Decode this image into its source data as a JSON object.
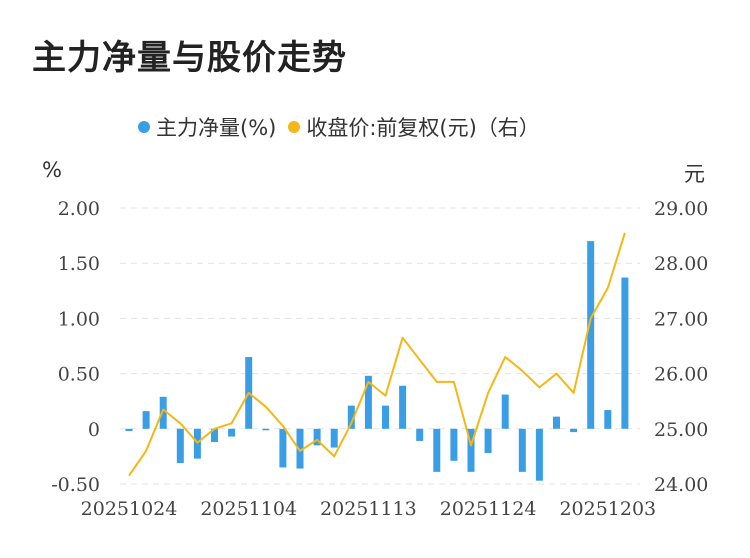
{
  "title": "主力净量与股价走势",
  "legend": {
    "bar_label": "主力净量(%)",
    "line_label": "收盘价:前复权(元)（右）"
  },
  "units": {
    "left": "%",
    "right": "元"
  },
  "colors": {
    "bar": "#3a9ee6",
    "line": "#f5b716",
    "grid": "#e3e3e3"
  },
  "chart_data": {
    "type": "bar+line",
    "x_tick_labels": [
      "20251024",
      "20251104",
      "20251113",
      "20251124",
      "20251203"
    ],
    "x_tick_indices": [
      0,
      7,
      14,
      21,
      28
    ],
    "left_axis": {
      "ticks": [
        "2.00",
        "1.50",
        "1.00",
        "0.50",
        "0",
        "-0.50"
      ],
      "min": -0.5,
      "max": 2.0
    },
    "right_axis": {
      "ticks": [
        "29.00",
        "28.00",
        "27.00",
        "26.00",
        "25.00",
        "24.00"
      ],
      "min": 24.0,
      "max": 29.0
    },
    "grid": true,
    "series": [
      {
        "name": "主力净量(%)",
        "kind": "bar",
        "values": [
          -0.02,
          0.16,
          0.29,
          -0.31,
          -0.27,
          -0.12,
          -0.07,
          0.65,
          -0.01,
          -0.35,
          -0.36,
          -0.15,
          -0.17,
          0.21,
          0.48,
          0.21,
          0.39,
          -0.11,
          -0.39,
          -0.29,
          -0.39,
          -0.22,
          0.31,
          -0.39,
          -0.47,
          0.11,
          -0.03,
          1.7,
          0.17,
          1.37
        ]
      },
      {
        "name": "收盘价:前复权(元)（右）",
        "kind": "line",
        "values": [
          24.15,
          24.6,
          25.35,
          25.1,
          24.75,
          25.0,
          25.1,
          25.65,
          25.4,
          25.05,
          24.6,
          24.8,
          24.5,
          25.1,
          25.85,
          25.6,
          26.65,
          26.25,
          25.85,
          25.85,
          24.7,
          25.65,
          26.3,
          26.05,
          25.75,
          26.0,
          25.65,
          27.0,
          27.55,
          28.55
        ]
      }
    ]
  }
}
